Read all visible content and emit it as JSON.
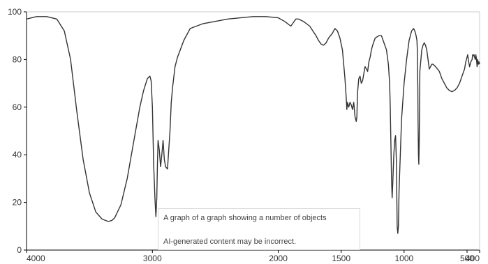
{
  "chart_data": {
    "type": "line",
    "title": "",
    "xlabel": "",
    "ylabel": "",
    "xlim": [
      4000,
      400
    ],
    "ylim": [
      0,
      100
    ],
    "x_ticks": [
      {
        "value": 4000,
        "label": "4000"
      },
      {
        "value": 3000,
        "label": "3000"
      },
      {
        "value": 2000,
        "label": "2000"
      },
      {
        "value": 1500,
        "label": "1500"
      },
      {
        "value": 1000,
        "label": "1000"
      },
      {
        "value": 500,
        "label": "500"
      },
      {
        "value": 400,
        "label": "400"
      }
    ],
    "y_ticks": [
      {
        "value": 0,
        "label": "0"
      },
      {
        "value": 20,
        "label": "20"
      },
      {
        "value": 40,
        "label": "40"
      },
      {
        "value": 60,
        "label": "60"
      },
      {
        "value": 80,
        "label": "80"
      },
      {
        "value": 100,
        "label": "100"
      }
    ],
    "grid": false,
    "legend": "none",
    "line_color": "#333333",
    "series": [
      {
        "x": [
          4000,
          3920,
          3840,
          3760,
          3700,
          3650,
          3600,
          3550,
          3500,
          3450,
          3400,
          3350,
          3320,
          3300,
          3250,
          3200,
          3150,
          3100,
          3070,
          3040,
          3020,
          3010,
          3000,
          2995,
          2990,
          2980,
          2972,
          2965,
          2960,
          2955,
          2945,
          2935,
          2925,
          2915,
          2905,
          2895,
          2880,
          2860,
          2850,
          2840,
          2820,
          2800,
          2750,
          2700,
          2650,
          2600,
          2500,
          2400,
          2300,
          2200,
          2100,
          2000,
          1950,
          1900,
          1880,
          1860,
          1840,
          1800,
          1750,
          1700,
          1680,
          1660,
          1640,
          1620,
          1600,
          1570,
          1550,
          1530,
          1510,
          1490,
          1480,
          1470,
          1460,
          1455,
          1450,
          1440,
          1430,
          1420,
          1410,
          1400,
          1390,
          1385,
          1380,
          1375,
          1370,
          1360,
          1350,
          1340,
          1330,
          1320,
          1310,
          1300,
          1290,
          1280,
          1270,
          1260,
          1250,
          1230,
          1200,
          1180,
          1160,
          1140,
          1125,
          1115,
          1110,
          1105,
          1100,
          1095,
          1090,
          1082,
          1075,
          1068,
          1062,
          1058,
          1055,
          1050,
          1045,
          1040,
          1030,
          1020,
          1000,
          980,
          960,
          940,
          925,
          915,
          905,
          898,
          895,
          893,
          891,
          889,
          886,
          883,
          880,
          875,
          860,
          850,
          840,
          830,
          820,
          810,
          800,
          790,
          780,
          770,
          750,
          720,
          700,
          680,
          660,
          640,
          620,
          600,
          580,
          560,
          540,
          520,
          510,
          500,
          495,
          490,
          480,
          470,
          460,
          455,
          450,
          445,
          440,
          435,
          430,
          425,
          420,
          415,
          410,
          405,
          400
        ],
        "y": [
          97,
          98,
          98,
          97,
          92,
          80,
          58,
          38,
          24,
          16,
          13,
          12,
          12.5,
          13.5,
          19,
          30,
          45,
          60,
          67,
          72,
          73,
          71,
          60,
          48,
          36,
          22,
          14,
          22,
          36,
          46,
          42,
          35,
          40,
          46,
          38,
          35,
          34,
          50,
          62,
          68,
          77,
          81,
          88,
          93,
          94,
          95,
          96,
          97,
          97.5,
          98,
          98,
          97.5,
          96,
          94,
          95.5,
          97,
          97,
          96,
          94,
          90,
          88,
          86.5,
          86,
          87,
          89,
          91,
          93,
          92,
          89,
          84,
          78,
          72,
          64,
          59,
          62,
          60,
          62,
          61,
          59,
          62,
          56,
          55,
          54,
          56,
          66,
          72,
          73,
          70,
          71,
          74,
          77,
          76,
          75,
          79,
          81,
          84,
          86,
          89,
          90,
          90,
          87,
          84,
          78,
          70,
          60,
          45,
          30,
          22,
          28,
          40,
          46,
          48,
          38,
          22,
          10,
          7,
          10,
          25,
          40,
          55,
          70,
          80,
          88,
          92,
          93,
          92,
          90,
          88,
          84,
          76,
          68,
          55,
          40,
          36,
          45,
          75,
          84,
          86,
          87,
          86,
          84,
          80,
          76,
          77,
          78,
          78,
          77,
          75,
          72,
          70,
          68,
          67,
          66.5,
          67,
          68,
          70,
          73,
          76,
          79,
          81,
          82,
          80,
          77,
          79,
          80,
          82,
          81.5,
          82,
          81,
          80,
          82,
          80,
          77,
          80,
          78,
          79,
          78
        ]
      }
    ]
  },
  "alt_text": {
    "line1": "A graph of a graph showing a number of objects",
    "line2": "AI-generated content may be incorrect."
  }
}
